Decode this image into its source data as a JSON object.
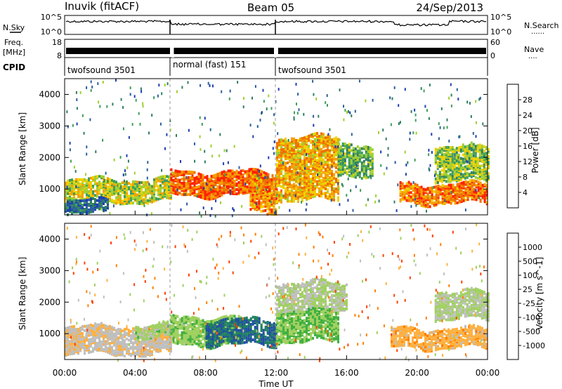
{
  "header": {
    "station": "Inuvik (fitACF)",
    "beam": "Beam 05",
    "date": "24/Sep/2013"
  },
  "noise_panel": {
    "left_label": "N.Sky",
    "right_label": "N.Search",
    "right_dots": "......",
    "left_ticks": [
      "10^5",
      "10^0"
    ],
    "right_ticks": [
      "10^5",
      "10^0"
    ]
  },
  "freq_panel": {
    "left_label_1": "Freq.",
    "left_label_2": "[MHz]",
    "right_label": "Nave",
    "right_dots": "....",
    "left_ticks": [
      "18",
      "8"
    ],
    "right_ticks": [
      "60",
      "0"
    ]
  },
  "cpid": {
    "label": "CPID",
    "segments": [
      {
        "name": "twofsound 3501",
        "start_hour": 0,
        "end_hour": 6
      },
      {
        "name": "normal (fast) 151",
        "start_hour": 6,
        "end_hour": 12
      },
      {
        "name": "twofsound 3501",
        "start_hour": 12,
        "end_hour": 24
      }
    ]
  },
  "power_panel": {
    "ylabel": "Slant Range [km]",
    "colorbar_label": "Power [dB]",
    "colorbar_ticks": [
      "28",
      "24",
      "20",
      "16",
      "12",
      "8",
      "4"
    ]
  },
  "velocity_panel": {
    "ylabel": "Slant Range [km]",
    "colorbar_label": "Velocity [m s^-1]",
    "colorbar_ticks": [
      "1000",
      "500",
      "100",
      "25",
      "-25",
      "-100",
      "-500",
      "-1000"
    ]
  },
  "x_axis": {
    "label": "Time UT",
    "ticks": [
      "00:00",
      "04:00",
      "08:00",
      "12:00",
      "16:00",
      "20:00",
      "00:00"
    ]
  },
  "y_axis": {
    "ticks": [
      "1000",
      "2000",
      "3000",
      "4000"
    ]
  },
  "chart_data": [
    {
      "type": "heatmap",
      "title": "",
      "xlabel": "Time UT",
      "ylabel": "Slant Range [km]",
      "xlim": [
        0,
        24
      ],
      "ylim": [
        180,
        4500
      ],
      "colorbar": "Power [dB]",
      "clim": [
        0,
        30
      ],
      "bands": [
        {
          "t0": 0.0,
          "t1": 6.0,
          "r0": 650,
          "r1": 1350,
          "level": 18
        },
        {
          "t0": 6.0,
          "t1": 12.0,
          "r0": 850,
          "r1": 1600,
          "level": 26
        },
        {
          "t0": 10.5,
          "t1": 12.0,
          "r0": 300,
          "r1": 1500,
          "level": 24
        },
        {
          "t0": 12.0,
          "t1": 15.5,
          "r0": 700,
          "r1": 2700,
          "level": 22
        },
        {
          "t0": 15.5,
          "t1": 17.5,
          "r0": 1500,
          "r1": 2500,
          "level": 14
        },
        {
          "t0": 19.0,
          "t1": 24.0,
          "r0": 600,
          "r1": 1200,
          "level": 25
        },
        {
          "t0": 21.0,
          "t1": 24.0,
          "r0": 1300,
          "r1": 2400,
          "level": 16
        },
        {
          "t0": 0.0,
          "t1": 2.5,
          "r0": 250,
          "r1": 700,
          "level": 8
        }
      ]
    },
    {
      "type": "heatmap",
      "title": "",
      "xlabel": "Time UT",
      "ylabel": "Slant Range [km]",
      "xlim": [
        0,
        24
      ],
      "ylim": [
        180,
        4500
      ],
      "colorbar": "Velocity [m s^-1]",
      "clim": [
        -1000,
        1000
      ],
      "bands": [
        {
          "t0": 0.0,
          "t1": 6.0,
          "r0": 400,
          "r1": 1300,
          "level": -150
        },
        {
          "t0": 4.0,
          "t1": 6.0,
          "r0": 900,
          "r1": 1350,
          "level": 80
        },
        {
          "t0": 6.0,
          "t1": 10.0,
          "r0": 700,
          "r1": 1600,
          "level": 150
        },
        {
          "t0": 8.0,
          "t1": 12.0,
          "r0": 700,
          "r1": 1500,
          "level": 600
        },
        {
          "t0": 12.0,
          "t1": 15.5,
          "r0": 800,
          "r1": 1800,
          "level": 200
        },
        {
          "t0": 12.0,
          "t1": 16.0,
          "r0": 1800,
          "r1": 2700,
          "level": 0
        },
        {
          "t0": 18.5,
          "t1": 24.0,
          "r0": 600,
          "r1": 1200,
          "level": -300
        },
        {
          "t0": 21.0,
          "t1": 24.0,
          "r0": 1500,
          "r1": 2400,
          "level": 10
        }
      ]
    }
  ]
}
